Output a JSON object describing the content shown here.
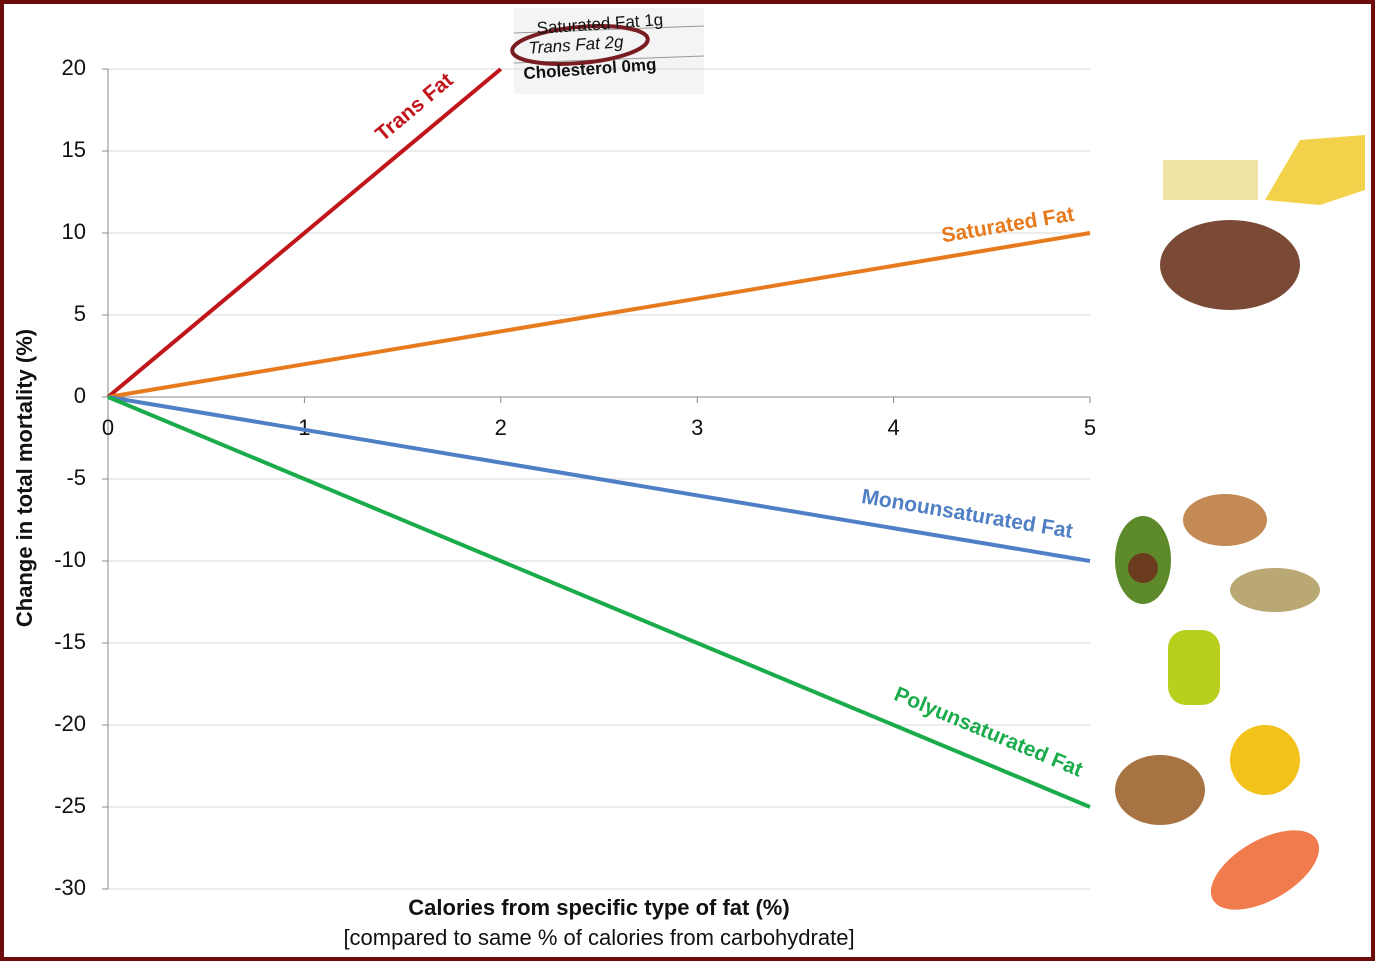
{
  "chart_data": {
    "type": "line",
    "x_label": "Calories from specific type of fat (%)",
    "x_sublabel": "[compared to same % of calories from carbohydrate]",
    "y_label": "Change in total mortality (%)",
    "x": [
      0,
      2,
      5
    ],
    "xlim": [
      0,
      5
    ],
    "xticks": [
      0,
      1,
      2,
      3,
      4,
      5
    ],
    "ylim": [
      -30,
      20
    ],
    "yticks": [
      -30,
      -25,
      -20,
      -15,
      -10,
      -5,
      0,
      5,
      10,
      15,
      20
    ],
    "grid": true,
    "series": [
      {
        "name": "Trans Fat",
        "color": "#c0161b",
        "values": [
          0,
          20,
          null
        ]
      },
      {
        "name": "Saturated Fat",
        "color": "#e87a1e",
        "values": [
          0,
          4,
          10
        ]
      },
      {
        "name": "Monounsaturated Fat",
        "color": "#4f7fc4",
        "values": [
          0,
          -4,
          -10
        ]
      },
      {
        "name": "Polyunsaturated Fat",
        "color": "#1aab4b",
        "values": [
          0,
          -10,
          -25
        ]
      }
    ]
  },
  "nutrition_label": [
    "Saturated Fat 1g",
    "Trans Fat 2g",
    "Cholesterol 0mg"
  ]
}
